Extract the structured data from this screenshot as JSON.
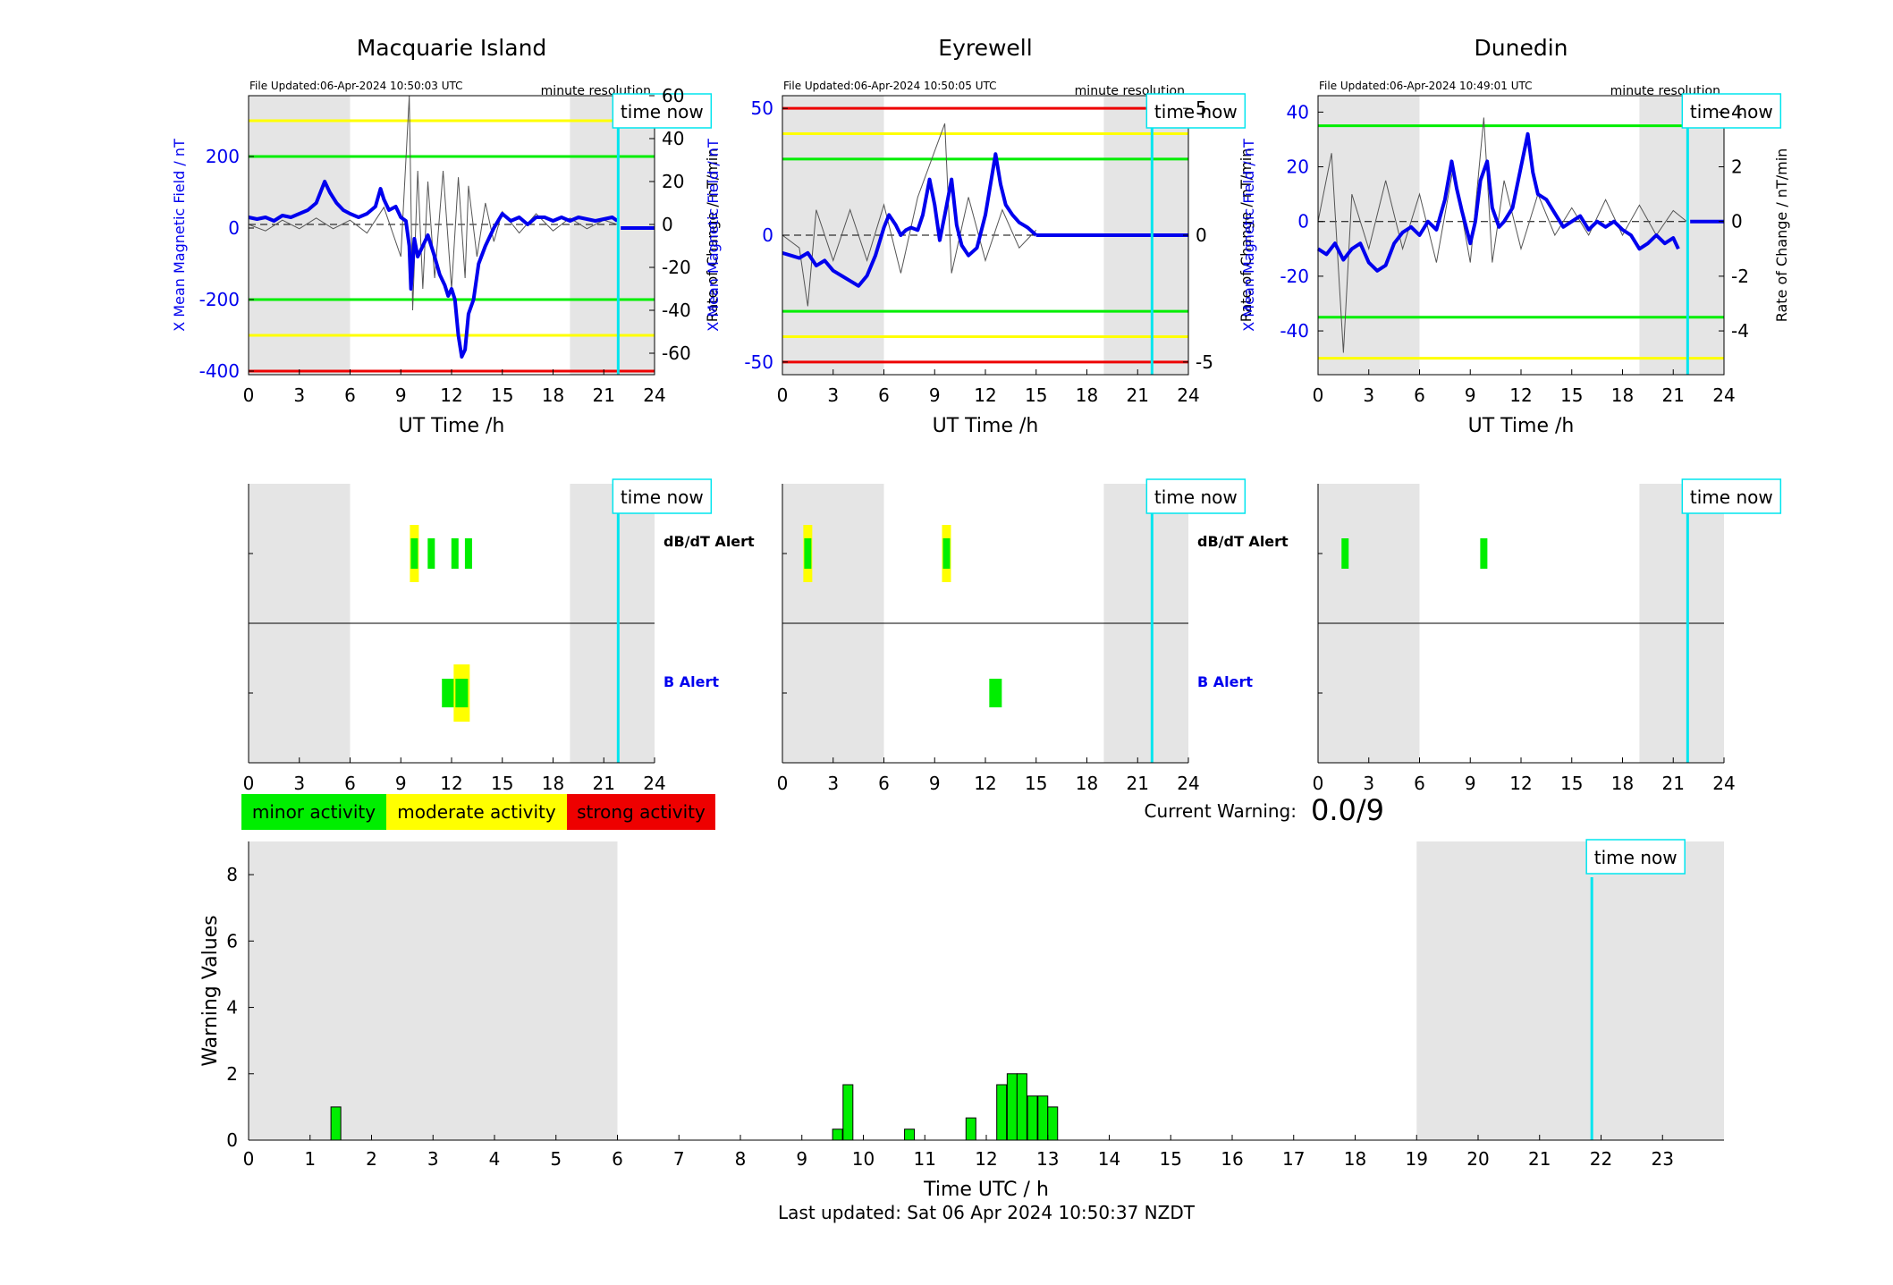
{
  "colors": {
    "field": "#0000ee",
    "roc": "#555555",
    "green": "#00ee00",
    "yellow": "#ffff00",
    "red": "#ee0000",
    "cyan": "#00e5ee",
    "night": "#e5e5e5"
  },
  "time_now_label": "time now",
  "resolution_label": "minute resolution",
  "ut_axis_label": "UT Time /h",
  "left_axis_label": "X Mean Magnetic Field / nT",
  "right_axis_label": "Rate of Change / nT/min",
  "dbdt_alert_label": "dB/dT Alert",
  "b_alert_label": "B Alert",
  "legend": {
    "minor": "minor activity",
    "moderate": "moderate activity",
    "strong": "strong activity"
  },
  "current_warning": {
    "label": "Current Warning:",
    "value": "0.0/9"
  },
  "footer": "Last updated: Sat 06 Apr 2024 10:50:37 NZDT",
  "chart_data": [
    {
      "type": "line",
      "title": "Macquarie Island",
      "file_updated": "File Updated:06-Apr-2024 10:50:03 UTC",
      "time_now_h": 21.85,
      "night_bands": [
        [
          0,
          6
        ],
        [
          19,
          24
        ]
      ],
      "xlim": [
        0,
        24
      ],
      "xticks": [
        0,
        3,
        6,
        9,
        12,
        15,
        18,
        21,
        24
      ],
      "ylim": [
        -410,
        370
      ],
      "yticks": [
        -400,
        -200,
        0,
        200
      ],
      "rlim": [
        -70,
        60
      ],
      "rticks": [
        -60,
        -40,
        -20,
        0,
        20,
        40,
        60
      ],
      "thresholds": [
        {
          "value": 300,
          "level": "yellow"
        },
        {
          "value": 200,
          "level": "green"
        },
        {
          "value": -200,
          "level": "green"
        },
        {
          "value": -300,
          "level": "yellow"
        },
        {
          "value": -400,
          "level": "red"
        }
      ],
      "field_series": [
        [
          0,
          30
        ],
        [
          0.5,
          25
        ],
        [
          1,
          30
        ],
        [
          1.5,
          20
        ],
        [
          2,
          35
        ],
        [
          2.5,
          30
        ],
        [
          3,
          40
        ],
        [
          3.5,
          50
        ],
        [
          4,
          70
        ],
        [
          4.5,
          130
        ],
        [
          4.8,
          100
        ],
        [
          5.2,
          70
        ],
        [
          5.6,
          50
        ],
        [
          6,
          40
        ],
        [
          6.5,
          30
        ],
        [
          7,
          40
        ],
        [
          7.5,
          60
        ],
        [
          7.8,
          110
        ],
        [
          8,
          80
        ],
        [
          8.3,
          50
        ],
        [
          8.7,
          60
        ],
        [
          9,
          30
        ],
        [
          9.3,
          20
        ],
        [
          9.5,
          -50
        ],
        [
          9.6,
          -170
        ],
        [
          9.8,
          -30
        ],
        [
          10,
          -80
        ],
        [
          10.3,
          -50
        ],
        [
          10.6,
          -20
        ],
        [
          11,
          -80
        ],
        [
          11.3,
          -130
        ],
        [
          11.6,
          -160
        ],
        [
          11.8,
          -190
        ],
        [
          12,
          -170
        ],
        [
          12.2,
          -200
        ],
        [
          12.4,
          -300
        ],
        [
          12.6,
          -360
        ],
        [
          12.8,
          -340
        ],
        [
          13,
          -240
        ],
        [
          13.3,
          -200
        ],
        [
          13.6,
          -100
        ],
        [
          14,
          -50
        ],
        [
          14.5,
          0
        ],
        [
          15,
          40
        ],
        [
          15.5,
          20
        ],
        [
          16,
          30
        ],
        [
          16.5,
          10
        ],
        [
          17,
          30
        ],
        [
          17.5,
          30
        ],
        [
          18,
          20
        ],
        [
          18.5,
          30
        ],
        [
          19,
          20
        ],
        [
          19.5,
          30
        ],
        [
          20,
          25
        ],
        [
          20.5,
          20
        ],
        [
          21,
          25
        ],
        [
          21.5,
          30
        ],
        [
          21.8,
          20
        ]
      ],
      "after_now": {
        "from": 22,
        "to": 24,
        "value": 0
      },
      "roc_series": [
        [
          0,
          0
        ],
        [
          1,
          -3
        ],
        [
          2,
          2
        ],
        [
          3,
          -2
        ],
        [
          4,
          3
        ],
        [
          5,
          -2
        ],
        [
          6,
          2
        ],
        [
          7,
          -4
        ],
        [
          8,
          8
        ],
        [
          9,
          -15
        ],
        [
          9.5,
          60
        ],
        [
          9.7,
          -40
        ],
        [
          10,
          25
        ],
        [
          10.3,
          -30
        ],
        [
          10.6,
          20
        ],
        [
          11,
          -25
        ],
        [
          11.5,
          25
        ],
        [
          12,
          -30
        ],
        [
          12.4,
          22
        ],
        [
          12.8,
          -25
        ],
        [
          13,
          18
        ],
        [
          13.5,
          -15
        ],
        [
          14,
          10
        ],
        [
          14.5,
          -8
        ],
        [
          15,
          6
        ],
        [
          16,
          -4
        ],
        [
          17,
          5
        ],
        [
          18,
          -3
        ],
        [
          19,
          3
        ],
        [
          20,
          -2
        ],
        [
          21,
          2
        ],
        [
          21.8,
          0
        ]
      ],
      "dbdt_alerts": [
        {
          "h": 9.8,
          "level": "yellow"
        },
        {
          "h": 9.8,
          "level": "green"
        },
        {
          "h": 10.8,
          "level": "green"
        },
        {
          "h": 12.2,
          "level": "green"
        },
        {
          "h": 13.0,
          "level": "green"
        }
      ],
      "b_alerts": [
        {
          "h": 11.8,
          "level": "green"
        },
        {
          "h": 12.6,
          "level": "yellow"
        },
        {
          "h": 12.6,
          "level": "green"
        }
      ]
    },
    {
      "type": "line",
      "title": "Eyrewell",
      "file_updated": "File Updated:06-Apr-2024 10:50:05 UTC",
      "time_now_h": 21.85,
      "night_bands": [
        [
          0,
          6
        ],
        [
          19,
          24
        ]
      ],
      "xlim": [
        0,
        24
      ],
      "xticks": [
        0,
        3,
        6,
        9,
        12,
        15,
        18,
        21,
        24
      ],
      "ylim": [
        -55,
        55
      ],
      "yticks": [
        -50,
        0,
        50
      ],
      "rlim": [
        -5.5,
        5.5
      ],
      "rticks": [
        -5,
        0,
        5
      ],
      "thresholds": [
        {
          "value": 50,
          "level": "red"
        },
        {
          "value": 40,
          "level": "yellow"
        },
        {
          "value": 30,
          "level": "green"
        },
        {
          "value": -30,
          "level": "green"
        },
        {
          "value": -40,
          "level": "yellow"
        },
        {
          "value": -50,
          "level": "red"
        }
      ],
      "field_series": [
        [
          0,
          -7
        ],
        [
          0.5,
          -8
        ],
        [
          1,
          -9
        ],
        [
          1.5,
          -7
        ],
        [
          2,
          -12
        ],
        [
          2.5,
          -10
        ],
        [
          3,
          -14
        ],
        [
          3.5,
          -16
        ],
        [
          4,
          -18
        ],
        [
          4.5,
          -20
        ],
        [
          5,
          -16
        ],
        [
          5.5,
          -8
        ],
        [
          6,
          3
        ],
        [
          6.3,
          8
        ],
        [
          6.7,
          4
        ],
        [
          7,
          0
        ],
        [
          7.3,
          2
        ],
        [
          7.6,
          3
        ],
        [
          8,
          2
        ],
        [
          8.3,
          8
        ],
        [
          8.7,
          22
        ],
        [
          9,
          12
        ],
        [
          9.3,
          -2
        ],
        [
          9.6,
          8
        ],
        [
          10,
          22
        ],
        [
          10.3,
          4
        ],
        [
          10.6,
          -4
        ],
        [
          11,
          -8
        ],
        [
          11.5,
          -5
        ],
        [
          12,
          8
        ],
        [
          12.3,
          20
        ],
        [
          12.6,
          32
        ],
        [
          12.9,
          20
        ],
        [
          13.2,
          12
        ],
        [
          13.6,
          8
        ],
        [
          14,
          5
        ],
        [
          14.5,
          3
        ],
        [
          15,
          0
        ]
      ],
      "after_now": {
        "from": 15,
        "to": 24,
        "value": 0
      },
      "roc_series": [
        [
          0,
          0
        ],
        [
          1,
          -0.5
        ],
        [
          1.5,
          -2.8
        ],
        [
          2,
          1
        ],
        [
          3,
          -1
        ],
        [
          4,
          1
        ],
        [
          5,
          -1
        ],
        [
          6,
          1.2
        ],
        [
          7,
          -1.5
        ],
        [
          8,
          1.5
        ],
        [
          9.6,
          4.4
        ],
        [
          10,
          -1.5
        ],
        [
          11,
          1.5
        ],
        [
          12,
          -1
        ],
        [
          13,
          1
        ],
        [
          14,
          -0.5
        ],
        [
          15,
          0.2
        ]
      ],
      "dbdt_alerts": [
        {
          "h": 1.5,
          "level": "yellow"
        },
        {
          "h": 1.5,
          "level": "green"
        },
        {
          "h": 9.7,
          "level": "yellow"
        },
        {
          "h": 9.7,
          "level": "green"
        }
      ],
      "b_alerts": [
        {
          "h": 12.6,
          "level": "green"
        }
      ]
    },
    {
      "type": "line",
      "title": "Dunedin",
      "file_updated": "File Updated:06-Apr-2024 10:49:01 UTC",
      "time_now_h": 21.85,
      "night_bands": [
        [
          0,
          6
        ],
        [
          19,
          24
        ]
      ],
      "xlim": [
        0,
        24
      ],
      "xticks": [
        0,
        3,
        6,
        9,
        12,
        15,
        18,
        21,
        24
      ],
      "ylim": [
        -56,
        46
      ],
      "yticks": [
        -40,
        -20,
        0,
        20,
        40
      ],
      "rlim": [
        -5.6,
        4.6
      ],
      "rticks": [
        -4,
        -2,
        0,
        2,
        4
      ],
      "thresholds": [
        {
          "value": 35,
          "level": "green"
        },
        {
          "value": -35,
          "level": "green"
        },
        {
          "value": -50,
          "level": "yellow"
        }
      ],
      "field_series": [
        [
          0,
          -10
        ],
        [
          0.5,
          -12
        ],
        [
          1,
          -8
        ],
        [
          1.5,
          -14
        ],
        [
          2,
          -10
        ],
        [
          2.5,
          -8
        ],
        [
          3,
          -15
        ],
        [
          3.5,
          -18
        ],
        [
          4,
          -16
        ],
        [
          4.5,
          -8
        ],
        [
          5,
          -4
        ],
        [
          5.5,
          -2
        ],
        [
          6,
          -5
        ],
        [
          6.5,
          0
        ],
        [
          7,
          -3
        ],
        [
          7.5,
          8
        ],
        [
          7.9,
          22
        ],
        [
          8.2,
          12
        ],
        [
          8.5,
          4
        ],
        [
          9,
          -8
        ],
        [
          9.3,
          0
        ],
        [
          9.6,
          15
        ],
        [
          10,
          22
        ],
        [
          10.3,
          5
        ],
        [
          10.7,
          -2
        ],
        [
          11,
          0
        ],
        [
          11.5,
          5
        ],
        [
          12,
          20
        ],
        [
          12.4,
          32
        ],
        [
          12.7,
          18
        ],
        [
          13,
          10
        ],
        [
          13.5,
          8
        ],
        [
          14,
          3
        ],
        [
          14.5,
          -2
        ],
        [
          15,
          0
        ],
        [
          15.5,
          2
        ],
        [
          16,
          -3
        ],
        [
          16.5,
          0
        ],
        [
          17,
          -2
        ],
        [
          17.5,
          0
        ],
        [
          18,
          -3
        ],
        [
          18.5,
          -5
        ],
        [
          19,
          -10
        ],
        [
          19.5,
          -8
        ],
        [
          20,
          -5
        ],
        [
          20.5,
          -8
        ],
        [
          21,
          -6
        ],
        [
          21.3,
          -10
        ]
      ],
      "after_now": {
        "from": 22,
        "to": 24,
        "value": 0
      },
      "roc_series": [
        [
          0,
          0
        ],
        [
          0.8,
          2.5
        ],
        [
          1.5,
          -4.8
        ],
        [
          2,
          1
        ],
        [
          3,
          -1
        ],
        [
          4,
          1.5
        ],
        [
          5,
          -1
        ],
        [
          6,
          1
        ],
        [
          7,
          -1.5
        ],
        [
          8,
          2
        ],
        [
          9,
          -1.5
        ],
        [
          9.8,
          3.8
        ],
        [
          10.3,
          -1.5
        ],
        [
          11,
          1.5
        ],
        [
          12,
          -1
        ],
        [
          13,
          1
        ],
        [
          14,
          -0.5
        ],
        [
          15,
          0.5
        ],
        [
          16,
          -0.5
        ],
        [
          17,
          0.8
        ],
        [
          18,
          -0.5
        ],
        [
          19,
          0.6
        ],
        [
          20,
          -0.5
        ],
        [
          21,
          0.4
        ],
        [
          21.8,
          0
        ]
      ],
      "dbdt_alerts": [
        {
          "h": 1.6,
          "level": "green"
        },
        {
          "h": 9.8,
          "level": "green"
        }
      ],
      "b_alerts": []
    },
    {
      "type": "bar",
      "xlabel": "Time UTC / h",
      "ylabel": "Warning Values",
      "xlim": [
        0,
        24
      ],
      "ylim": [
        0,
        9
      ],
      "xticks": [
        0,
        1,
        2,
        3,
        4,
        5,
        6,
        7,
        8,
        9,
        10,
        11,
        12,
        13,
        14,
        15,
        16,
        17,
        18,
        19,
        20,
        21,
        22,
        23
      ],
      "yticks": [
        0,
        2,
        4,
        6,
        8
      ],
      "night_bands": [
        [
          0,
          6
        ],
        [
          19,
          24
        ]
      ],
      "time_now_h": 21.85,
      "bar_width_h": 0.16,
      "bars": [
        [
          1.42,
          1.0
        ],
        [
          9.58,
          0.33
        ],
        [
          9.75,
          1.67
        ],
        [
          10.75,
          0.33
        ],
        [
          11.75,
          0.67
        ],
        [
          12.25,
          1.67
        ],
        [
          12.42,
          2.0
        ],
        [
          12.58,
          2.0
        ],
        [
          12.75,
          1.33
        ],
        [
          12.92,
          1.33
        ],
        [
          13.08,
          1.0
        ]
      ]
    }
  ]
}
